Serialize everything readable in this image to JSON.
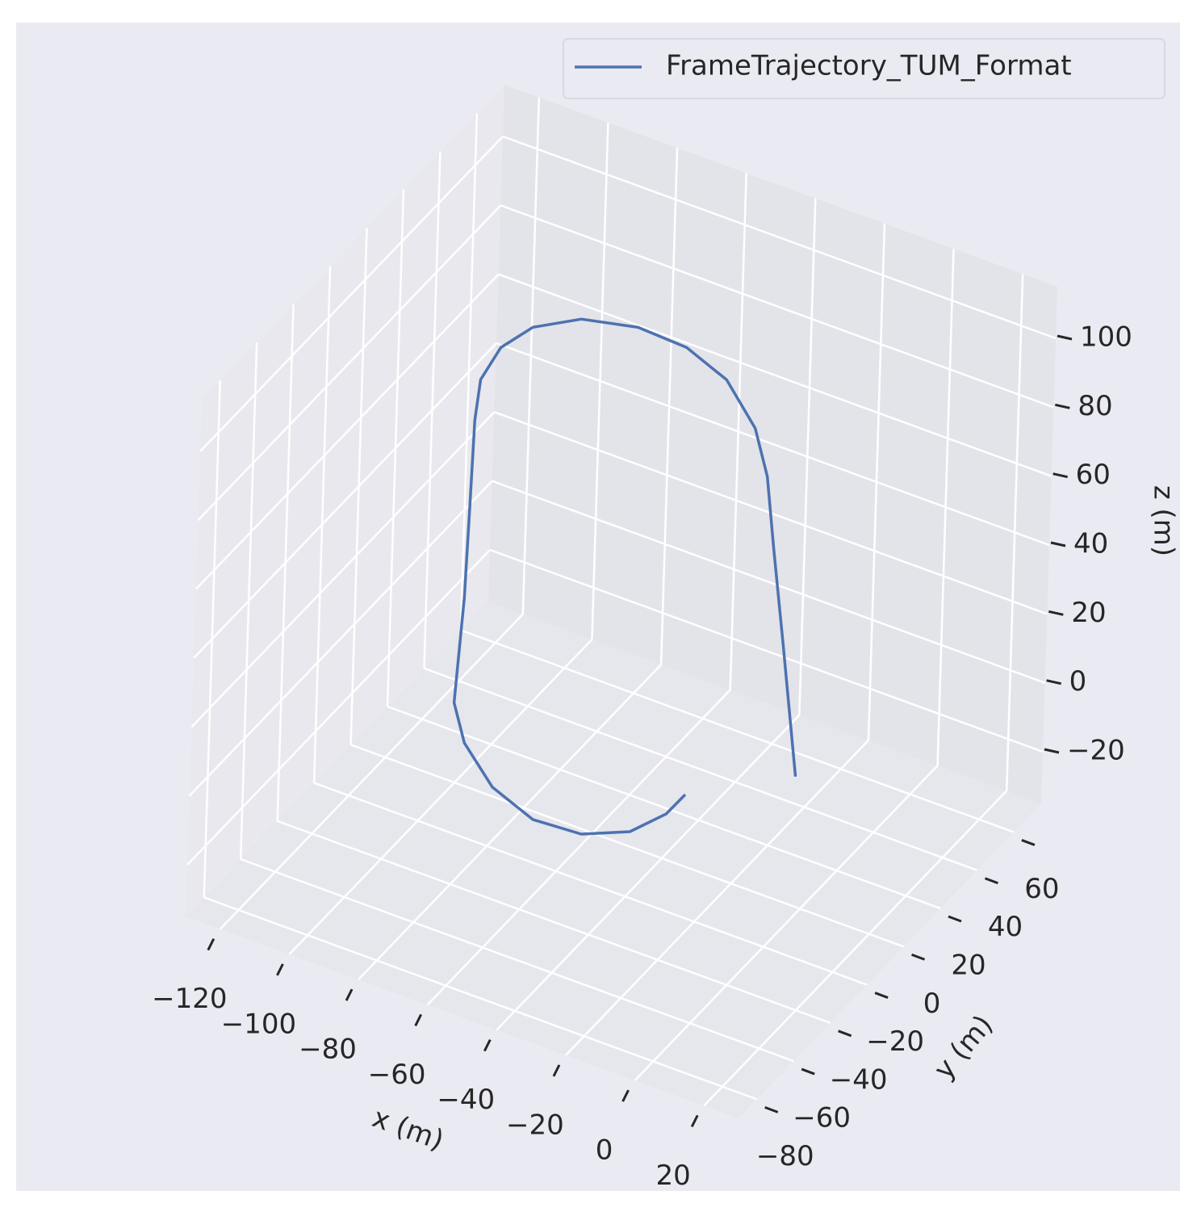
{
  "chart_data": {
    "type": "line3d",
    "xlabel": "x (m)",
    "ylabel": "y (m)",
    "zlabel": "z (m)",
    "xlim": [
      -130,
      30
    ],
    "ylim": [
      -90,
      75
    ],
    "zlim": [
      -35,
      115
    ],
    "xticks": [
      {
        "value": -120,
        "label": "−120"
      },
      {
        "value": -100,
        "label": "−100"
      },
      {
        "value": -80,
        "label": "−80"
      },
      {
        "value": -60,
        "label": "−60"
      },
      {
        "value": -40,
        "label": "−40"
      },
      {
        "value": -20,
        "label": "−20"
      },
      0,
      20
    ],
    "yticks": [
      {
        "value": -80,
        "label": "−80"
      },
      {
        "value": -60,
        "label": "−60"
      },
      {
        "value": -40,
        "label": "−40"
      },
      {
        "value": -20,
        "label": "−20"
      },
      0,
      20,
      40,
      60
    ],
    "zticks": [
      {
        "value": -20,
        "label": "−20"
      },
      0,
      20,
      40,
      60,
      80,
      100
    ],
    "grid": true,
    "legend": "upper right",
    "series": [
      {
        "name": "FrameTrajectory_TUM_Format",
        "color": "#4c72b0",
        "x": [
          -2.5,
          -7.1,
          -10.7,
          -13.2,
          -17.1,
          -25.7,
          -37.5,
          -51.5,
          -67.8,
          -81.6,
          -90.6,
          -96.1,
          -97.4,
          -98,
          -98.8,
          -100.8,
          -97.5,
          -80.6,
          -65.3,
          -51.9,
          -42,
          -37.9,
          -37.8
        ],
        "y": [
          0,
          0,
          0,
          0,
          0,
          0,
          0,
          0,
          0,
          0,
          0,
          0,
          0,
          0,
          0,
          0,
          0,
          -16.7,
          -23.5,
          -22.3,
          -14.5,
          -2.5,
          7.3
        ],
        "z": [
          2.8,
          38.6,
          65.4,
          85.6,
          98.2,
          109.1,
          114.2,
          114.9,
          111.3,
          103.9,
          94.7,
          83.4,
          71.2,
          47.5,
          19.1,
          -12.1,
          -22.6,
          -20,
          -20,
          -20,
          -20,
          -20,
          -20
        ]
      }
    ]
  }
}
